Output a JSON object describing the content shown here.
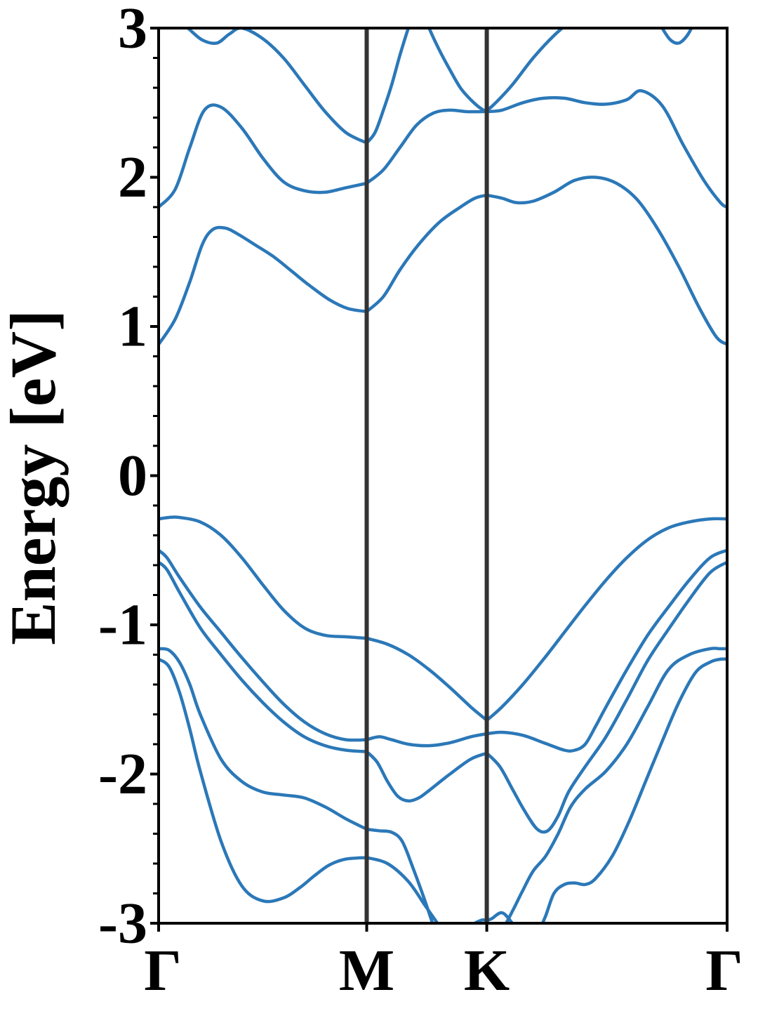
{
  "chart_data": {
    "type": "line",
    "title": "",
    "xlabel": "",
    "ylabel": "Energy [eV]",
    "ylim": [
      -3,
      3
    ],
    "y_ticks": [
      -3,
      -2,
      -1,
      0,
      1,
      2,
      3
    ],
    "y_tick_labels": [
      "-3",
      "-2",
      "-1",
      "0",
      "1",
      "2",
      "3"
    ],
    "y_minor_step": 0.2,
    "x_ticks": [
      0,
      1,
      1.577,
      2.732
    ],
    "x_tick_labels": [
      "Γ",
      "M",
      "K",
      "Γ"
    ],
    "xlim": [
      0,
      2.732
    ],
    "high_symmetry_lines": [
      1,
      1.577
    ],
    "grid": false,
    "legend": "none",
    "colors": {
      "band": "#2b78b8",
      "symmetry_line": "#333333",
      "axis": "#000000"
    },
    "series": [
      {
        "x": [
          0,
          0.08,
          0.15,
          0.21,
          0.26,
          0.32,
          0.38,
          0.46,
          0.55,
          0.64,
          0.72,
          0.82,
          0.91,
          1.0
        ],
        "values": [
          0.88,
          1.05,
          1.3,
          1.55,
          1.65,
          1.66,
          1.62,
          1.55,
          1.47,
          1.37,
          1.28,
          1.18,
          1.12,
          1.1
        ]
      },
      {
        "x": [
          1.0,
          1.08,
          1.16,
          1.25,
          1.35,
          1.45,
          1.52,
          1.577
        ],
        "values": [
          1.1,
          1.2,
          1.38,
          1.55,
          1.7,
          1.8,
          1.86,
          1.88
        ]
      },
      {
        "x": [
          1.577,
          1.65,
          1.72,
          1.8,
          1.9,
          2.0,
          2.1,
          2.2,
          2.3,
          2.4,
          2.5,
          2.6,
          2.68,
          2.732
        ],
        "values": [
          1.88,
          1.86,
          1.83,
          1.84,
          1.9,
          1.98,
          2.0,
          1.96,
          1.85,
          1.65,
          1.4,
          1.12,
          0.93,
          0.88
        ]
      },
      {
        "x": [
          0,
          0.08,
          0.15,
          0.22,
          0.3,
          0.4,
          0.5,
          0.6,
          0.7,
          0.8,
          0.9,
          1.0
        ],
        "values": [
          1.8,
          1.92,
          2.2,
          2.45,
          2.47,
          2.33,
          2.13,
          1.97,
          1.91,
          1.9,
          1.93,
          1.96
        ]
      },
      {
        "x": [
          1.0,
          1.08,
          1.16,
          1.24,
          1.32,
          1.4,
          1.48,
          1.577
        ],
        "values": [
          1.96,
          2.05,
          2.2,
          2.35,
          2.43,
          2.45,
          2.44,
          2.44
        ]
      },
      {
        "x": [
          1.577,
          1.65,
          1.75,
          1.85,
          1.95,
          2.05,
          2.15,
          2.25,
          2.32,
          2.42,
          2.52,
          2.62,
          2.7,
          2.732
        ],
        "values": [
          2.44,
          2.45,
          2.5,
          2.53,
          2.53,
          2.5,
          2.49,
          2.52,
          2.58,
          2.48,
          2.22,
          1.98,
          1.83,
          1.8
        ]
      },
      {
        "x": [
          0,
          0.07,
          0.14,
          0.21,
          0.28,
          0.34,
          0.4,
          0.5,
          0.6,
          0.7,
          0.8,
          0.9,
          1.0
        ],
        "values": [
          3.1,
          3.07,
          3.0,
          2.92,
          2.9,
          2.96,
          3.0,
          2.93,
          2.8,
          2.62,
          2.44,
          2.3,
          2.23
        ]
      },
      {
        "x": [
          1.0,
          1.04,
          1.08,
          1.12,
          1.16,
          1.2,
          1.23,
          1.25
        ],
        "values": [
          2.23,
          2.3,
          2.45,
          2.62,
          2.82,
          3.0,
          3.12,
          3.2
        ]
      },
      {
        "x": [
          1.26,
          1.3,
          1.35,
          1.4,
          1.45,
          1.5,
          1.55,
          1.577,
          1.62,
          1.7,
          1.8,
          1.9,
          2.0,
          2.05,
          2.08
        ],
        "values": [
          3.15,
          3.0,
          2.85,
          2.72,
          2.6,
          2.52,
          2.46,
          2.45,
          2.5,
          2.62,
          2.8,
          2.95,
          3.07,
          3.12,
          3.15
        ]
      },
      {
        "x": [
          2.38,
          2.42,
          2.46,
          2.5,
          2.54,
          2.58,
          2.62
        ],
        "values": [
          3.1,
          3.0,
          2.92,
          2.9,
          2.95,
          3.05,
          3.15
        ]
      },
      {
        "x": [
          0,
          0.05,
          0.1,
          0.2,
          0.3,
          0.4,
          0.5,
          0.6,
          0.7,
          0.8,
          0.9,
          1.0
        ],
        "values": [
          -0.29,
          -0.28,
          -0.28,
          -0.31,
          -0.4,
          -0.55,
          -0.73,
          -0.9,
          -1.02,
          -1.07,
          -1.08,
          -1.09
        ]
      },
      {
        "x": [
          1.0,
          1.1,
          1.2,
          1.3,
          1.4,
          1.5,
          1.577
        ],
        "values": [
          -1.09,
          -1.13,
          -1.2,
          -1.3,
          -1.42,
          -1.55,
          -1.64
        ]
      },
      {
        "x": [
          1.577,
          1.65,
          1.75,
          1.85,
          1.95,
          2.05,
          2.15,
          2.25,
          2.35,
          2.45,
          2.55,
          2.65,
          2.732
        ],
        "values": [
          -1.64,
          -1.55,
          -1.4,
          -1.23,
          -1.05,
          -0.87,
          -0.7,
          -0.55,
          -0.43,
          -0.35,
          -0.31,
          -0.29,
          -0.29
        ]
      },
      {
        "x": [
          0,
          0.04,
          0.1,
          0.2,
          0.3,
          0.4,
          0.5,
          0.6,
          0.7,
          0.8,
          0.9,
          1.0
        ],
        "values": [
          -0.5,
          -0.55,
          -0.68,
          -0.88,
          -1.05,
          -1.22,
          -1.38,
          -1.53,
          -1.65,
          -1.73,
          -1.77,
          -1.77
        ]
      },
      {
        "x": [
          1.0,
          1.06,
          1.12,
          1.2,
          1.3,
          1.4,
          1.5,
          1.577
        ],
        "values": [
          -1.77,
          -1.75,
          -1.77,
          -1.8,
          -1.81,
          -1.79,
          -1.75,
          -1.73
        ]
      },
      {
        "x": [
          1.577,
          1.65,
          1.75,
          1.85,
          1.95,
          2.0,
          2.05,
          2.1,
          2.15,
          2.25,
          2.35,
          2.45,
          2.55,
          2.65,
          2.732
        ],
        "values": [
          -1.73,
          -1.72,
          -1.74,
          -1.79,
          -1.84,
          -1.84,
          -1.8,
          -1.68,
          -1.55,
          -1.3,
          -1.07,
          -0.88,
          -0.7,
          -0.55,
          -0.5
        ]
      },
      {
        "x": [
          0,
          0.04,
          0.1,
          0.2,
          0.3,
          0.4,
          0.5,
          0.6,
          0.7,
          0.8,
          0.9,
          1.0
        ],
        "values": [
          -0.58,
          -0.63,
          -0.78,
          -1.02,
          -1.2,
          -1.37,
          -1.52,
          -1.65,
          -1.75,
          -1.81,
          -1.84,
          -1.85
        ]
      },
      {
        "x": [
          1.0,
          1.05,
          1.1,
          1.15,
          1.2,
          1.25,
          1.3,
          1.4,
          1.5,
          1.577
        ],
        "values": [
          -1.85,
          -1.92,
          -2.05,
          -2.15,
          -2.18,
          -2.16,
          -2.11,
          -2.0,
          -1.9,
          -1.86
        ]
      },
      {
        "x": [
          1.577,
          1.64,
          1.7,
          1.76,
          1.82,
          1.87,
          1.92,
          1.97,
          2.05,
          2.15,
          2.25,
          2.35,
          2.45,
          2.55,
          2.65,
          2.732
        ],
        "values": [
          -1.86,
          -1.95,
          -2.1,
          -2.25,
          -2.37,
          -2.38,
          -2.28,
          -2.12,
          -1.95,
          -1.75,
          -1.5,
          -1.24,
          -1.03,
          -0.83,
          -0.65,
          -0.58
        ]
      },
      {
        "x": [
          0,
          0.05,
          0.1,
          0.15,
          0.2,
          0.3,
          0.4,
          0.5,
          0.6,
          0.7,
          0.8,
          0.9,
          1.0
        ],
        "values": [
          -1.16,
          -1.17,
          -1.25,
          -1.4,
          -1.6,
          -1.9,
          -2.05,
          -2.12,
          -2.14,
          -2.16,
          -2.22,
          -2.3,
          -2.37
        ]
      },
      {
        "x": [
          1.0,
          1.06,
          1.12,
          1.17,
          1.22,
          1.28,
          1.34
        ],
        "values": [
          -2.37,
          -2.38,
          -2.39,
          -2.45,
          -2.62,
          -2.85,
          -3.1
        ]
      },
      {
        "x": [
          1.6,
          1.65,
          1.7,
          1.75,
          1.8,
          1.86,
          1.92,
          1.98,
          2.05,
          2.15,
          2.25,
          2.35,
          2.45,
          2.55,
          2.65,
          2.7,
          2.732
        ],
        "values": [
          -3.15,
          -3.05,
          -2.92,
          -2.78,
          -2.65,
          -2.55,
          -2.4,
          -2.22,
          -2.1,
          -1.98,
          -1.8,
          -1.55,
          -1.3,
          -1.2,
          -1.16,
          -1.16,
          -1.16
        ]
      },
      {
        "x": [
          0,
          0.05,
          0.1,
          0.15,
          0.2,
          0.3,
          0.4,
          0.5,
          0.6,
          0.68,
          0.75,
          0.82,
          0.9,
          1.0
        ],
        "values": [
          -1.23,
          -1.28,
          -1.45,
          -1.7,
          -1.98,
          -2.45,
          -2.75,
          -2.85,
          -2.83,
          -2.76,
          -2.68,
          -2.61,
          -2.57,
          -2.56
        ]
      },
      {
        "x": [
          1.0,
          1.1,
          1.2,
          1.28,
          1.34,
          1.38
        ],
        "values": [
          -2.56,
          -2.6,
          -2.72,
          -2.88,
          -3.0,
          -3.08
        ]
      },
      {
        "x": [
          1.82,
          1.86,
          1.9,
          1.95,
          2.0,
          2.05,
          2.1,
          2.18,
          2.26,
          2.34,
          2.42,
          2.5,
          2.58,
          2.65,
          2.7,
          2.732
        ],
        "values": [
          -3.08,
          -2.95,
          -2.8,
          -2.74,
          -2.73,
          -2.74,
          -2.7,
          -2.55,
          -2.32,
          -2.05,
          -1.78,
          -1.52,
          -1.32,
          -1.25,
          -1.23,
          -1.23
        ]
      },
      {
        "x": [
          1.45,
          1.5,
          1.55,
          1.577,
          1.6,
          1.65,
          1.7,
          1.75
        ],
        "values": [
          -3.12,
          -3.02,
          -2.98,
          -2.98,
          -2.97,
          -2.93,
          -3.0,
          -3.1
        ]
      }
    ]
  }
}
